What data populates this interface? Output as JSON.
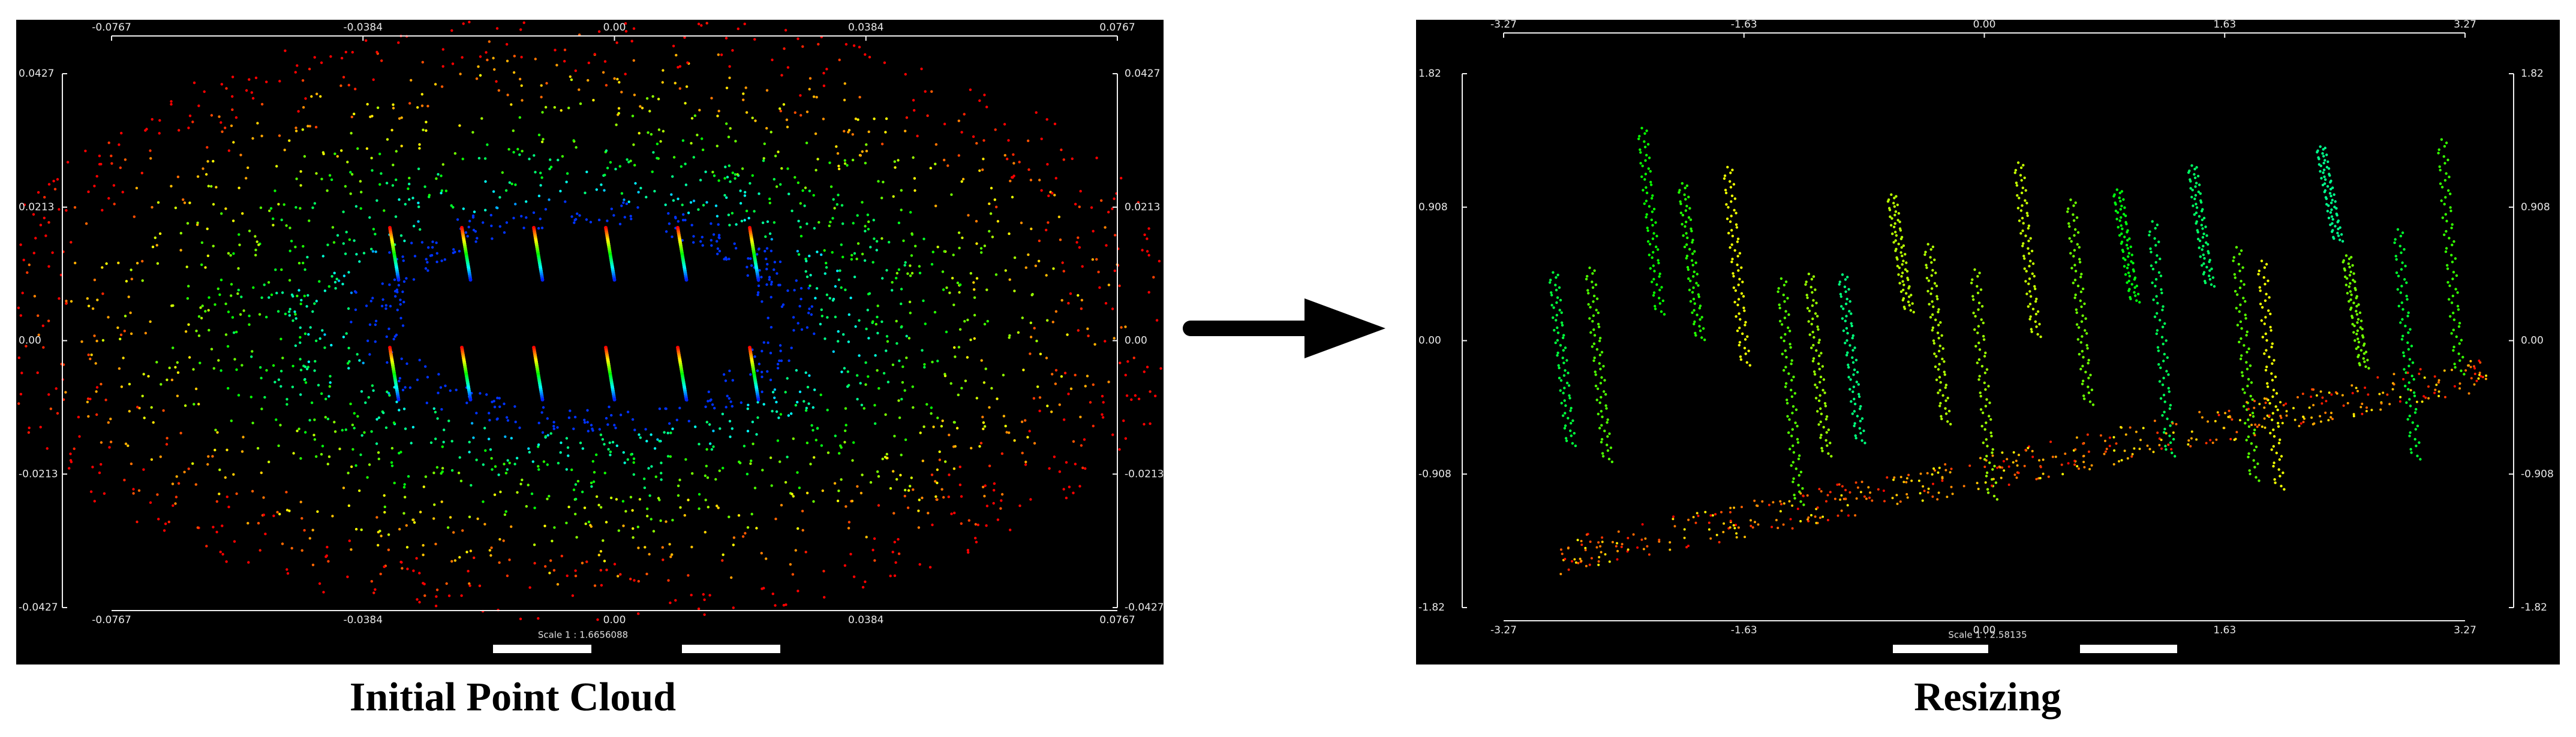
{
  "panels": [
    {
      "x_ticks": [
        "-0.0767",
        "-0.0384",
        "0.00",
        "0.0384",
        "0.0767"
      ],
      "y_ticks": [
        "0.0427",
        "0.0213",
        "0.00",
        "-0.0213",
        "-0.0427"
      ],
      "scale": "Scale 1 : 1.6656088",
      "caption": "Initial Point Cloud"
    },
    {
      "x_ticks": [
        "-3.27",
        "-1.63",
        "0.00",
        "1.63",
        "3.27"
      ],
      "y_ticks": [
        "1.82",
        "0.908",
        "0.00",
        "-0.908",
        "-1.82"
      ],
      "scale": "Scale 1 : 2.58135",
      "caption": "Resizing"
    }
  ]
}
